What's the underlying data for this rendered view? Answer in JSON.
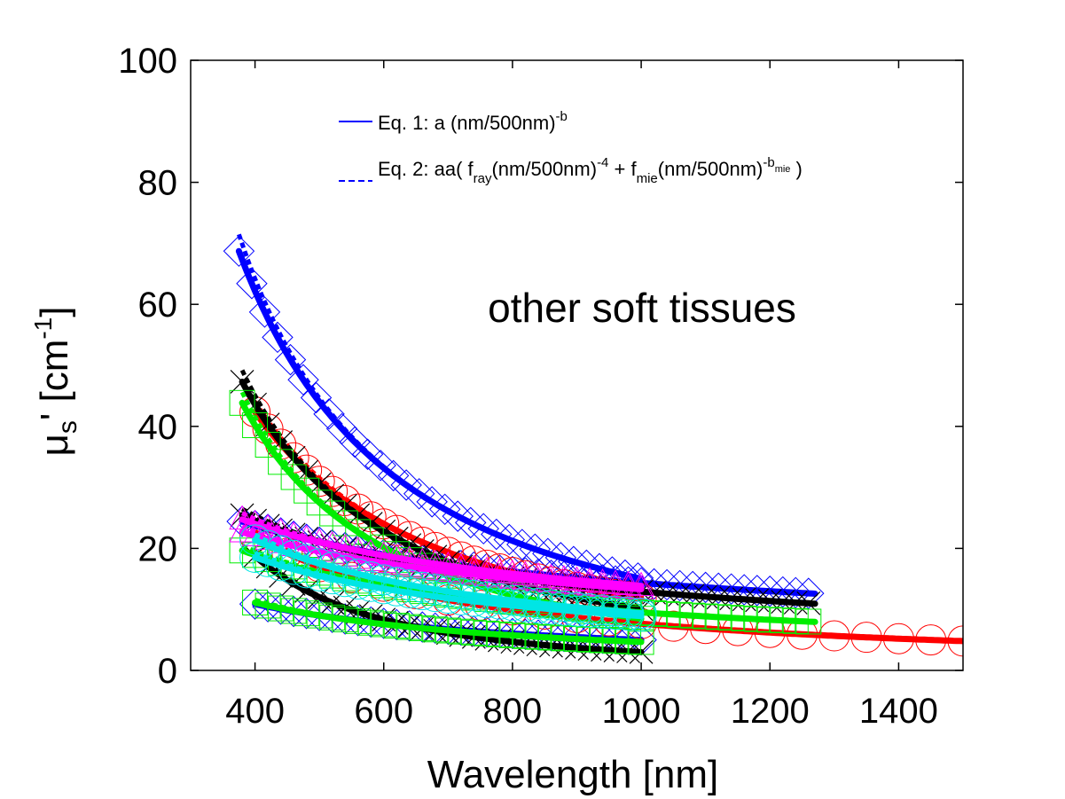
{
  "chart_data": {
    "type": "line",
    "xlabel": "Wavelength [nm]",
    "ylabel": "μs' [cm-1]",
    "ylabel_parts": {
      "mu": "μ",
      "sub": "s",
      "rest": "' [cm",
      "sup": "-1",
      "close": "]"
    },
    "annotation": "other soft tissues",
    "xlim": [
      300,
      1500
    ],
    "ylim": [
      0,
      100
    ],
    "xticks": [
      400,
      600,
      800,
      1000,
      1200,
      1400
    ],
    "yticks": [
      0,
      20,
      40,
      60,
      80,
      100
    ],
    "grid": false,
    "legend_position": "top-center",
    "legend": [
      {
        "label": "Eq. 1: a (nm/500nm)-b",
        "style": "solid",
        "color": "#0000ff",
        "parts": [
          "Eq. 1: a (nm/500nm)",
          "-b"
        ]
      },
      {
        "label": "Eq. 2: aa( fray(nm/500nm)-4 + fmie(nm/500nm)-bmie )",
        "style": "dashed",
        "color": "#0000ff",
        "parts": [
          "Eq. 2: aa( f",
          "ray",
          "(nm/500nm)",
          "-4",
          " + f",
          "mie",
          "(nm/500nm)",
          "-b",
          "mie",
          " )"
        ]
      }
    ],
    "series": [
      {
        "color": "#0000ff",
        "marker": "diamond",
        "a": 44.0,
        "b": 1.55,
        "xmin": 375,
        "xmax": 1000
      },
      {
        "color": "#0000ff",
        "marker": "diamond",
        "a": 21.0,
        "b": 0.55,
        "xmin": 380,
        "xmax": 1270
      },
      {
        "color": "#0000ff",
        "marker": "diamond",
        "a": 9.0,
        "b": 0.85,
        "xmin": 400,
        "xmax": 1000
      },
      {
        "color": "#ff0000",
        "marker": "circle",
        "a": 31.0,
        "b": 1.4,
        "xmin": 400,
        "xmax": 1000
      },
      {
        "color": "#ff0000",
        "marker": "circle",
        "a": 17.0,
        "b": 1.15,
        "xmin": 400,
        "xmax": 1500
      },
      {
        "color": "#000000",
        "marker": "x",
        "a": 30.5,
        "b": 1.6,
        "xmin": 380,
        "xmax": 1000
      },
      {
        "color": "#000000",
        "marker": "x",
        "a": 21.0,
        "b": 0.7,
        "xmin": 380,
        "xmax": 1270
      },
      {
        "color": "#000000",
        "marker": "x",
        "a": 12.0,
        "b": 2.0,
        "xmin": 400,
        "xmax": 1000
      },
      {
        "color": "#00ee00",
        "marker": "square",
        "a": 27.5,
        "b": 1.7,
        "xmin": 380,
        "xmax": 1000
      },
      {
        "color": "#00ee00",
        "marker": "square",
        "a": 16.0,
        "b": 0.75,
        "xmin": 380,
        "xmax": 1270
      },
      {
        "color": "#00ee00",
        "marker": "square",
        "a": 9.0,
        "b": 0.95,
        "xmin": 400,
        "xmax": 1000
      },
      {
        "color": "#ff00ff",
        "marker": "triangle",
        "a": 21.0,
        "b": 0.6,
        "xmin": 380,
        "xmax": 1000
      },
      {
        "color": "#ff00ff",
        "marker": "triangle",
        "a": 19.5,
        "b": 0.55,
        "xmin": 380,
        "xmax": 1000
      },
      {
        "color": "#00e5e5",
        "marker": "circle",
        "a": 17.5,
        "b": 0.9,
        "xmin": 400,
        "xmax": 1000
      },
      {
        "color": "#00e5e5",
        "marker": "circle",
        "a": 15.5,
        "b": 0.8,
        "xmin": 400,
        "xmax": 1000
      }
    ]
  }
}
